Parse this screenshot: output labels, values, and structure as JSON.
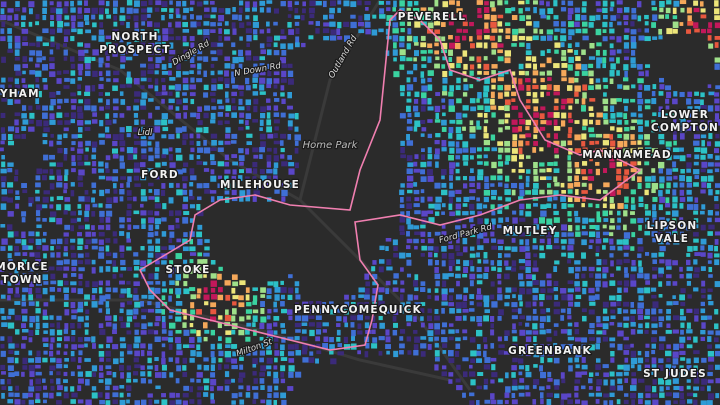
{
  "places": [
    {
      "lines": [
        "NORTH",
        "PROSPECT"
      ]
    },
    {
      "lines": [
        "YHAM"
      ]
    },
    {
      "lines": [
        "PEVERELL"
      ]
    },
    {
      "lines": [
        "LOWER",
        "COMPTON"
      ]
    },
    {
      "lines": [
        "MANNAMEAD"
      ]
    },
    {
      "lines": [
        "FORD"
      ]
    },
    {
      "lines": [
        "MILEHOUSE"
      ]
    },
    {
      "lines": [
        "MUTLEY"
      ]
    },
    {
      "lines": [
        "LIPSON",
        "VALE"
      ]
    },
    {
      "lines": [
        "MORICE",
        "TOWN"
      ]
    },
    {
      "lines": [
        "STOKE"
      ]
    },
    {
      "lines": [
        "PENNYCOMEQUICK"
      ]
    },
    {
      "lines": [
        "GREENBANK"
      ]
    },
    {
      "lines": [
        "ST JUDES"
      ]
    }
  ],
  "park": "Home Park",
  "roads": [
    "Dingle Rd",
    "N Down Rd",
    "Outland Rd",
    "Lidl",
    "Ford Park Rd",
    "Milton St"
  ]
}
